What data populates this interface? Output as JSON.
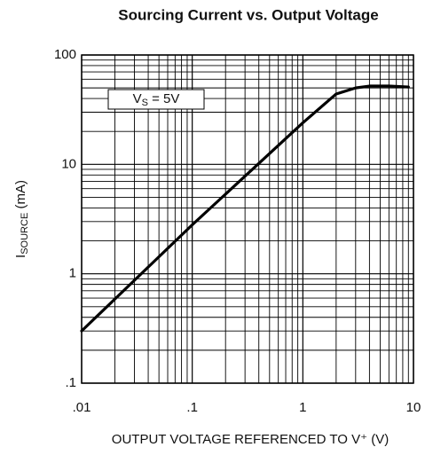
{
  "chart_data": {
    "type": "line",
    "title": "Sourcing Current vs. Output Voltage",
    "x_label": "OUTPUT VOLTAGE REFERENCED TO V⁺ (V)",
    "y_label": {
      "main": "I",
      "sub": "SOURCE",
      "rest": " (mA)"
    },
    "annotation": {
      "main": "V",
      "sub": "S",
      "rest": " = 5V"
    },
    "x": [
      0.01,
      0.1,
      1,
      2,
      3,
      4,
      6,
      9
    ],
    "series": [
      {
        "color": "#000000",
        "values": [
          0.3,
          2.8,
          24,
          44,
          50,
          52,
          52,
          51
        ]
      }
    ],
    "xlim": [
      0.01,
      10
    ],
    "ylim": [
      0.1,
      100
    ],
    "xticks": [
      {
        "value": 0.01,
        "label": ".01"
      },
      {
        "value": 0.1,
        "label": ".1"
      },
      1,
      10
    ],
    "yticks": [
      {
        "value": 0.1,
        "label": ".1"
      },
      1,
      10,
      100
    ],
    "xscale": "log",
    "yscale": "log",
    "grid": true,
    "minor_grid": true
  }
}
